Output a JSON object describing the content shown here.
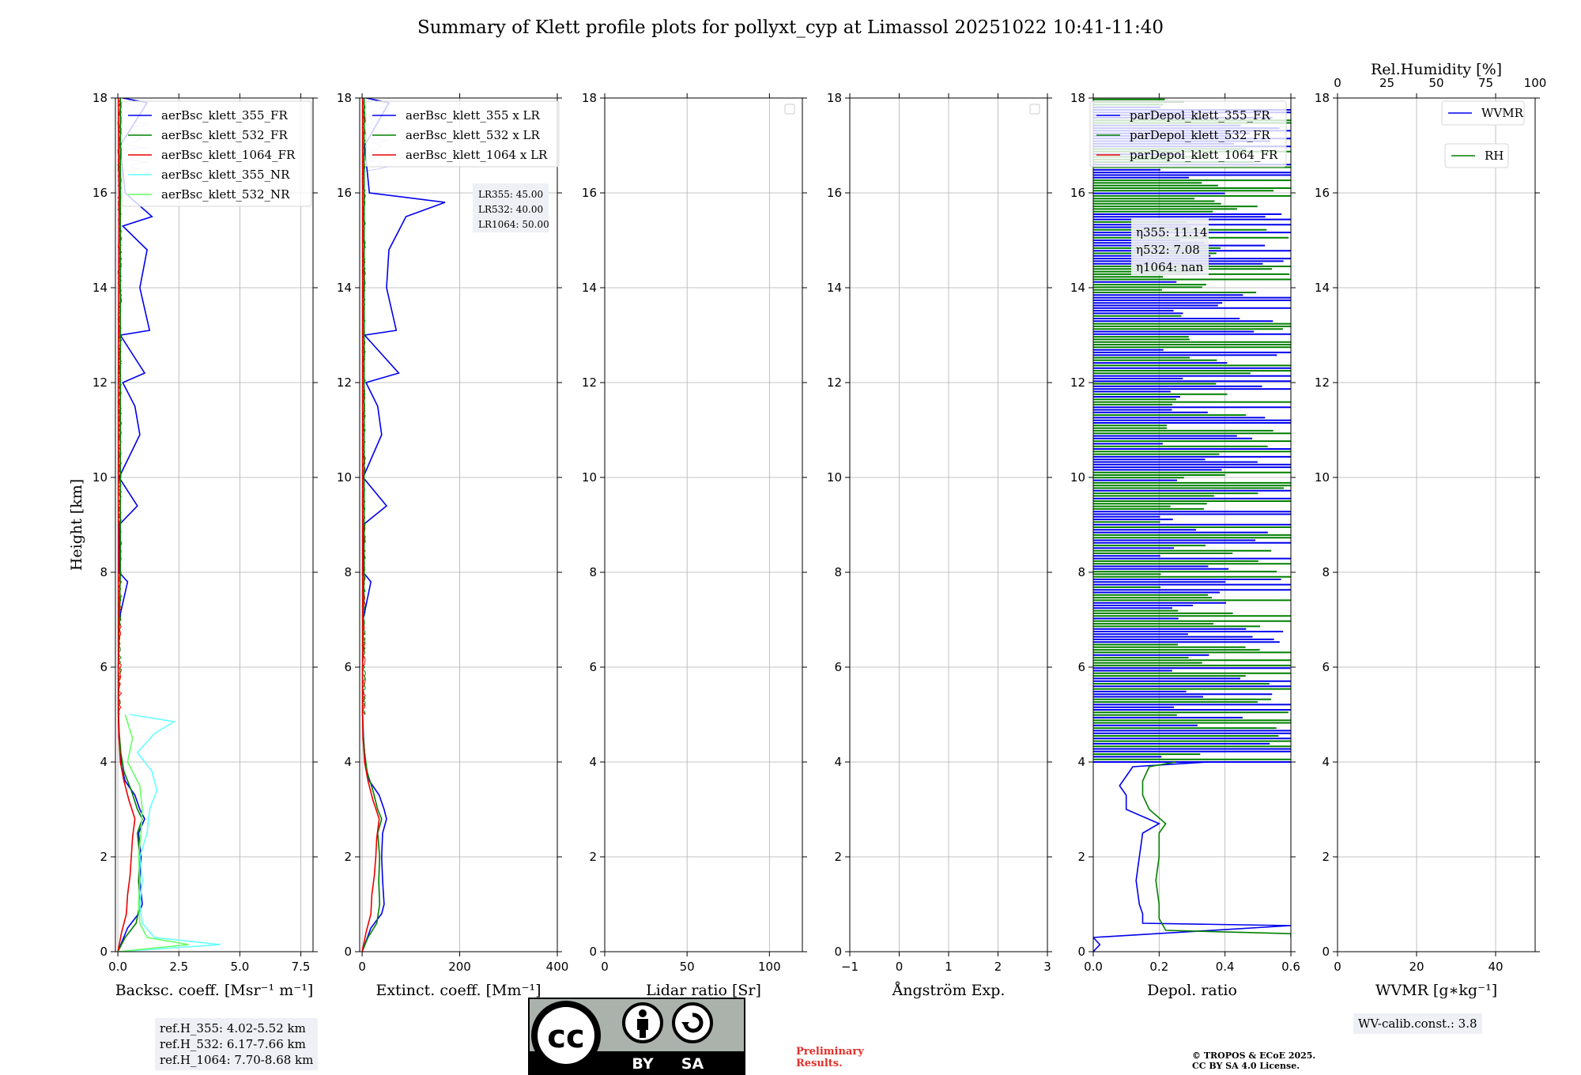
{
  "title": "Summary of Klett profile plots for pollyxt_cyp at Limassol 20251022 10:41-11:40",
  "ylabel": "Height [km]",
  "colors": {
    "b355": "#0000ee",
    "g532": "#008000",
    "r1064": "#ee0000",
    "c355nr": "#66ffff",
    "lg532nr": "#66ff66",
    "lav": "#ccccff"
  },
  "chart_data": [
    {
      "type": "line",
      "name": "backscatter",
      "xlabel": "Backsc. coeff. [Msr⁻¹ m⁻¹]",
      "xlim": [
        -0.1,
        8.0
      ],
      "xticks": [
        0.0,
        2.5,
        5.0,
        7.5
      ],
      "xtick_labels": [
        "0.0",
        "2.5",
        "5.0",
        "7.5"
      ],
      "ylim": [
        0,
        18
      ],
      "yticks": [
        0,
        2,
        4,
        6,
        8,
        10,
        12,
        14,
        16,
        18
      ],
      "legend": [
        "aerBsc_klett_355_FR",
        "aerBsc_klett_532_FR",
        "aerBsc_klett_1064_FR",
        "aerBsc_klett_355_NR",
        "aerBsc_klett_532_NR"
      ],
      "series": [
        {
          "name": "aerBsc_klett_355_FR",
          "color": "#0000ee",
          "h": [
            0.0,
            0.5,
            0.8,
            1.0,
            1.5,
            2.0,
            2.5,
            2.8,
            3.0,
            3.3,
            3.6,
            3.9,
            4.2,
            4.5,
            5.0,
            6.0,
            7.0,
            7.8,
            8.0,
            9.0,
            9.4,
            10.0,
            10.9,
            11.5,
            12.0,
            12.2,
            13.0,
            13.1,
            14.0,
            14.8,
            15.3,
            15.5,
            16.0,
            17.0,
            17.9,
            18.0
          ],
          "x": [
            0.0,
            0.4,
            0.85,
            1.0,
            0.9,
            0.95,
            0.85,
            1.1,
            0.9,
            0.7,
            0.3,
            0.15,
            0.1,
            0.05,
            0.02,
            0.02,
            0.05,
            0.4,
            0.05,
            0.05,
            0.8,
            0.05,
            0.9,
            0.7,
            0.2,
            1.1,
            0.1,
            1.3,
            0.9,
            1.2,
            0.2,
            1.4,
            0.3,
            0.1,
            1.2,
            0.2
          ]
        },
        {
          "name": "aerBsc_klett_532_FR",
          "color": "#008000",
          "h": [
            0.0,
            0.3,
            0.6,
            1.0,
            1.5,
            2.0,
            2.5,
            2.8,
            3.0,
            3.4,
            3.8,
            4.2,
            4.6,
            5.0,
            6.0,
            8.0,
            10.0,
            12.0,
            14.0,
            16.0,
            18.0
          ],
          "x": [
            0.0,
            0.3,
            0.75,
            0.9,
            0.85,
            0.9,
            0.8,
            1.0,
            0.8,
            0.55,
            0.25,
            0.12,
            0.06,
            0.03,
            0.02,
            0.1,
            0.1,
            0.1,
            0.1,
            0.1,
            0.1
          ]
        },
        {
          "name": "aerBsc_klett_1064_FR",
          "color": "#ee0000",
          "h": [
            0.0,
            0.4,
            0.8,
            1.2,
            1.6,
            2.0,
            2.4,
            2.8,
            3.2,
            3.6,
            4.0,
            4.5,
            5.0,
            8.0,
            12.0,
            16.0,
            18.0
          ],
          "x": [
            0.0,
            0.15,
            0.35,
            0.4,
            0.5,
            0.55,
            0.6,
            0.7,
            0.45,
            0.25,
            0.1,
            0.05,
            0.02,
            0.02,
            0.02,
            0.05,
            0.02
          ]
        },
        {
          "name": "aerBsc_klett_355_NR",
          "color": "#66ffff",
          "h": [
            0.0,
            0.15,
            0.3,
            0.6,
            1.0,
            1.5,
            2.0,
            2.5,
            3.0,
            3.4,
            3.8,
            4.2,
            4.6,
            4.85,
            5.0
          ],
          "x": [
            0.0,
            4.2,
            1.5,
            1.0,
            0.9,
            1.0,
            0.9,
            1.2,
            1.3,
            1.6,
            1.4,
            0.8,
            1.5,
            2.3,
            0.5
          ]
        },
        {
          "name": "aerBsc_klett_532_NR",
          "color": "#66ff66",
          "h": [
            0.0,
            0.15,
            0.3,
            0.6,
            1.0,
            1.5,
            2.0,
            2.5,
            3.0,
            3.5,
            4.0,
            4.5,
            5.0
          ],
          "x": [
            0.0,
            2.9,
            1.2,
            0.9,
            0.85,
            0.9,
            0.85,
            0.95,
            1.0,
            0.9,
            0.4,
            0.6,
            0.3
          ]
        }
      ]
    },
    {
      "type": "line",
      "name": "extinction",
      "xlabel": "Extinct. coeff. [Mm⁻¹]",
      "xlim": [
        -5,
        400
      ],
      "xticks": [
        0,
        200,
        400
      ],
      "xtick_labels": [
        "0",
        "200",
        "400"
      ],
      "ylim": [
        0,
        18
      ],
      "yticks": [
        0,
        2,
        4,
        6,
        8,
        10,
        12,
        14,
        16,
        18
      ],
      "legend": [
        "aerBsc_klett_355 x LR",
        "aerBsc_klett_532 x LR",
        "aerBsc_klett_1064 x LR"
      ],
      "lidar_ratio_labels": [
        "LR355: 45.00",
        "LR532: 40.00",
        "LR1064: 50.00"
      ],
      "series": [
        {
          "name": "aerBsc_klett_355 x LR",
          "color": "#0000ee",
          "h": [
            0.0,
            0.5,
            0.8,
            1.0,
            1.5,
            2.0,
            2.5,
            2.8,
            3.0,
            3.3,
            3.6,
            3.9,
            4.2,
            4.5,
            5.0,
            6.0,
            7.0,
            7.8,
            8.0,
            9.0,
            9.4,
            10.0,
            10.9,
            11.5,
            12.0,
            12.2,
            13.0,
            13.1,
            14.0,
            14.8,
            15.5,
            15.8,
            16.0,
            17.0,
            17.9,
            18.0
          ],
          "x": [
            0,
            18,
            40,
            45,
            42,
            40,
            42,
            50,
            45,
            35,
            15,
            8,
            5,
            3,
            1,
            1,
            2,
            18,
            2,
            2,
            50,
            2,
            40,
            32,
            8,
            75,
            5,
            70,
            50,
            55,
            90,
            170,
            15,
            5,
            55,
            8
          ]
        },
        {
          "name": "aerBsc_klett_532 x LR",
          "color": "#008000",
          "h": [
            0.0,
            0.3,
            0.6,
            1.0,
            1.5,
            2.0,
            2.5,
            2.8,
            3.0,
            3.4,
            3.8,
            4.2,
            4.6,
            5.0,
            6.0,
            8.0,
            12.0,
            16.0,
            18.0
          ],
          "x": [
            0,
            12,
            30,
            36,
            34,
            36,
            32,
            40,
            32,
            22,
            10,
            5,
            2,
            1,
            1,
            4,
            4,
            4,
            4
          ]
        },
        {
          "name": "aerBsc_klett_1064 x LR",
          "color": "#ee0000",
          "h": [
            0.0,
            0.4,
            0.8,
            1.2,
            1.6,
            2.0,
            2.4,
            2.8,
            3.2,
            3.6,
            4.0,
            4.5,
            5.0,
            8.0,
            12.0,
            18.0
          ],
          "x": [
            0,
            8,
            18,
            20,
            25,
            28,
            30,
            35,
            22,
            12,
            5,
            2,
            1,
            1,
            1,
            1
          ]
        }
      ]
    },
    {
      "type": "line",
      "name": "lidar_ratio",
      "xlabel": "Lidar ratio [Sr]",
      "xlim": [
        0,
        120
      ],
      "xticks": [
        0,
        50,
        100
      ],
      "xtick_labels": [
        "0",
        "50",
        "100"
      ],
      "ylim": [
        0,
        18
      ],
      "yticks": [
        0,
        2,
        4,
        6,
        8,
        10,
        12,
        14,
        16,
        18
      ],
      "series": []
    },
    {
      "type": "line",
      "name": "angstrom",
      "xlabel": "Ångström Exp.",
      "xlim": [
        -1,
        3
      ],
      "xticks": [
        -1,
        0,
        1,
        2,
        3
      ],
      "xtick_labels": [
        "−1",
        "0",
        "1",
        "2",
        "3"
      ],
      "ylim": [
        0,
        18
      ],
      "yticks": [
        0,
        2,
        4,
        6,
        8,
        10,
        12,
        14,
        16,
        18
      ],
      "series": []
    },
    {
      "type": "line",
      "name": "depolarization",
      "xlabel": "Depol. ratio",
      "xlim": [
        0.0,
        0.6
      ],
      "xticks": [
        0.0,
        0.2,
        0.4,
        0.6
      ],
      "xtick_labels": [
        "0.0",
        "0.2",
        "0.4",
        "0.6"
      ],
      "ylim": [
        0,
        18
      ],
      "yticks": [
        0,
        2,
        4,
        6,
        8,
        10,
        12,
        14,
        16,
        18
      ],
      "legend": [
        "parDepol_klett_355_FR",
        "parDepol_klett_532_FR",
        "parDepol_klett_1064_FR"
      ],
      "eta_labels": [
        "η355: 11.14",
        "η532: 7.08",
        "η1064: nan"
      ],
      "series": [
        {
          "name": "parDepol_klett_355_FR",
          "color": "#0000ee",
          "h": [
            0.0,
            0.15,
            0.3,
            0.55,
            0.6,
            0.8,
            1.0,
            1.5,
            2.0,
            2.5,
            2.7,
            3.0,
            3.3,
            3.5,
            3.7,
            3.9,
            4.0
          ],
          "x": [
            0.0,
            0.02,
            0.0,
            0.6,
            0.15,
            0.15,
            0.14,
            0.13,
            0.14,
            0.15,
            0.2,
            0.1,
            0.1,
            0.08,
            0.1,
            0.12,
            0.35
          ]
        },
        {
          "name": "parDepol_klett_532_FR",
          "color": "#008000",
          "h": [
            0.3,
            0.38,
            0.45,
            0.7,
            1.0,
            1.5,
            2.0,
            2.5,
            2.7,
            3.0,
            3.3,
            3.6,
            3.9,
            4.0
          ],
          "x": [
            0.6,
            0.6,
            0.22,
            0.2,
            0.2,
            0.19,
            0.2,
            0.2,
            0.22,
            0.17,
            0.15,
            0.15,
            0.17,
            0.25
          ]
        }
      ]
    },
    {
      "type": "line",
      "name": "water_vapor",
      "xlabel": "WVMR [g∗kg⁻¹]",
      "xlim": [
        0,
        50
      ],
      "xticks": [
        0,
        20,
        40
      ],
      "xtick_labels": [
        "0",
        "20",
        "40"
      ],
      "top_xlabel": "Rel.Humidity [%]",
      "top_xlim": [
        0,
        100
      ],
      "top_xticks": [
        0,
        25,
        50,
        75,
        100
      ],
      "top_xtick_labels": [
        "0",
        "25",
        "50",
        "75",
        "100"
      ],
      "ylim": [
        0,
        18
      ],
      "yticks": [
        0,
        2,
        4,
        6,
        8,
        10,
        12,
        14,
        16,
        18
      ],
      "legend": [
        "WVMR",
        "RH"
      ],
      "series": []
    }
  ],
  "ytick_labels": [
    "0",
    "2",
    "4",
    "6",
    "8",
    "10",
    "12",
    "14",
    "16",
    "18"
  ],
  "ref_heights": [
    "ref.H_355: 4.02-5.52 km",
    "ref.H_532: 6.17-7.66 km",
    "ref.H_1064: 7.70-8.68 km"
  ],
  "wv_calib": "WV-calib.const.: 3.8",
  "preliminary": [
    "Preliminary",
    "Results."
  ],
  "copyright": [
    "© TROPOS & ECoE 2025.",
    "CC BY SA 4.0 License."
  ],
  "license_badge": {
    "logo": "cc",
    "labels": [
      "BY",
      "SA"
    ],
    "icons": [
      "person-icon",
      "share-alike-icon"
    ]
  }
}
